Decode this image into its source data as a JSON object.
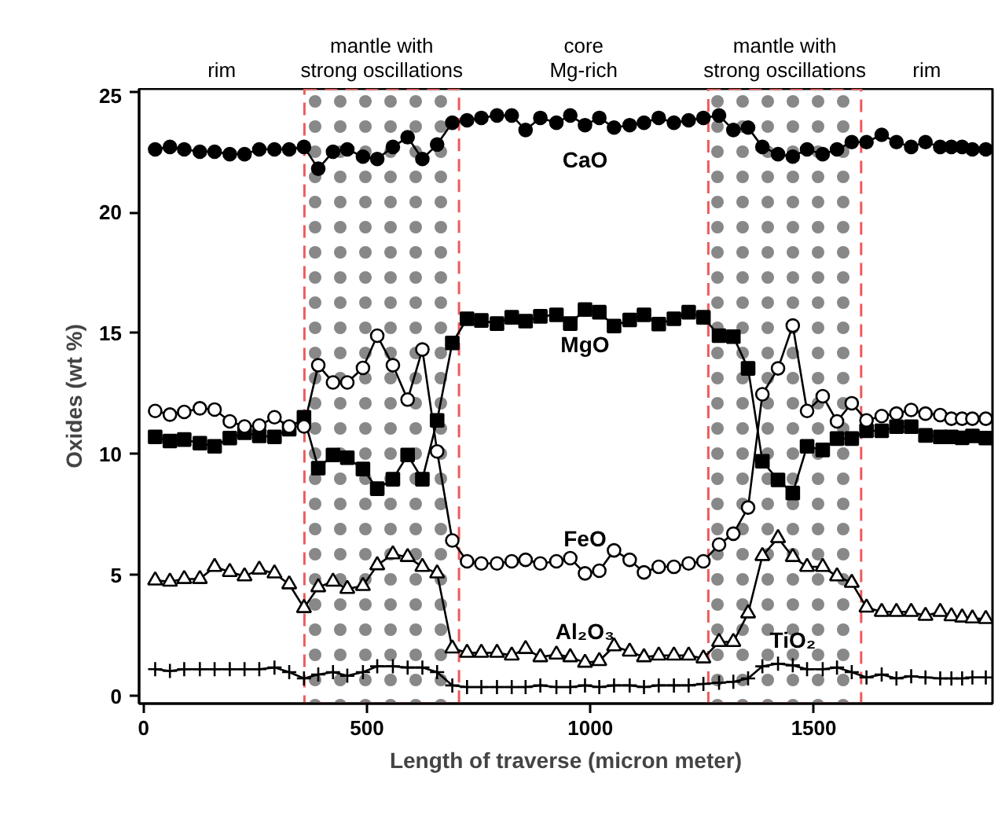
{
  "chart_data": {
    "type": "line",
    "xlabel": "Length of traverse (micron meter)",
    "ylabel": "Oxides (wt %)",
    "xlim": [
      -10,
      1900
    ],
    "ylim": [
      -0.3,
      25.1
    ],
    "xticks": [
      0,
      500,
      1000,
      1500
    ],
    "yticks": [
      0,
      5,
      10,
      15,
      20,
      25
    ],
    "grid": false,
    "line_style": "solid",
    "x": [
      26,
      59,
      91,
      126,
      159,
      193,
      226,
      259,
      293,
      326,
      359,
      391,
      424,
      456,
      491,
      523,
      558,
      591,
      624,
      657,
      691,
      724,
      756,
      791,
      824,
      855,
      888,
      924,
      955,
      988,
      1020,
      1053,
      1088,
      1120,
      1153,
      1187,
      1220,
      1253,
      1288,
      1320,
      1353,
      1385,
      1420,
      1453,
      1485,
      1520,
      1552,
      1585,
      1618,
      1652,
      1685,
      1718,
      1750,
      1783,
      1808,
      1832,
      1855,
      1885
    ],
    "series": [
      {
        "name": "CaO",
        "color": "#000000",
        "marker": "circle",
        "values": [
          22.6,
          22.7,
          22.6,
          22.5,
          22.5,
          22.4,
          22.4,
          22.6,
          22.6,
          22.6,
          22.7,
          21.8,
          22.5,
          22.6,
          22.3,
          22.2,
          22.7,
          23.1,
          22.2,
          22.8,
          23.7,
          23.8,
          23.9,
          24.0,
          24.0,
          23.4,
          23.9,
          23.7,
          24.0,
          23.6,
          23.9,
          23.5,
          23.6,
          23.7,
          23.9,
          23.7,
          23.8,
          23.9,
          24.0,
          23.4,
          23.5,
          22.7,
          22.4,
          22.3,
          22.6,
          22.4,
          22.6,
          22.9,
          22.9,
          23.2,
          22.9,
          22.7,
          22.9,
          22.7,
          22.7,
          22.7,
          22.6,
          22.6
        ]
      },
      {
        "name": "MgO",
        "color": "#000000",
        "marker": "square",
        "values": [
          10.72,
          10.55,
          10.61,
          10.46,
          10.33,
          10.67,
          10.89,
          10.76,
          10.72,
          11.04,
          11.53,
          9.43,
          9.97,
          9.86,
          9.39,
          8.58,
          8.97,
          9.97,
          8.97,
          11.4,
          14.6,
          15.6,
          15.53,
          15.4,
          15.66,
          15.5,
          15.7,
          15.76,
          15.4,
          15.98,
          15.87,
          15.3,
          15.55,
          15.76,
          15.38,
          15.6,
          15.87,
          15.66,
          14.9,
          14.86,
          13.55,
          9.71,
          8.94,
          8.4,
          10.33,
          10.18,
          10.65,
          10.65,
          10.97,
          10.97,
          11.14,
          11.14,
          10.78,
          10.72,
          10.72,
          10.68,
          10.76,
          10.67
        ]
      },
      {
        "name": "FeO",
        "color": "#000000",
        "marker": "circle",
        "values": [
          11.79,
          11.64,
          11.75,
          11.9,
          11.85,
          11.36,
          11.15,
          11.19,
          11.53,
          11.15,
          11.15,
          13.68,
          12.97,
          12.97,
          13.57,
          14.9,
          13.68,
          12.26,
          14.33,
          10.12,
          6.44,
          5.58,
          5.49,
          5.49,
          5.58,
          5.64,
          5.49,
          5.58,
          5.71,
          5.08,
          5.19,
          6.03,
          5.64,
          5.12,
          5.35,
          5.35,
          5.49,
          5.58,
          6.27,
          6.72,
          7.8,
          12.48,
          13.55,
          15.32,
          11.79,
          12.4,
          11.36,
          12.11,
          11.4,
          11.58,
          11.68,
          11.83,
          11.68,
          11.62,
          11.47,
          11.47,
          11.47,
          11.47
        ]
      },
      {
        "name": "Al₂O₃",
        "color": "#000000",
        "marker": "triangle",
        "values": [
          4.79,
          4.74,
          4.85,
          4.85,
          5.35,
          5.14,
          4.96,
          5.24,
          5.08,
          4.63,
          3.65,
          4.51,
          4.74,
          4.44,
          4.56,
          5.42,
          5.87,
          5.76,
          5.35,
          5.08,
          1.98,
          1.8,
          1.8,
          1.8,
          1.69,
          1.96,
          1.62,
          1.73,
          1.62,
          1.39,
          1.46,
          2.07,
          1.85,
          1.62,
          1.69,
          1.69,
          1.69,
          1.57,
          2.25,
          2.25,
          3.43,
          5.8,
          6.54,
          5.76,
          5.35,
          5.35,
          4.96,
          4.69,
          3.67,
          3.49,
          3.49,
          3.49,
          3.33,
          3.49,
          3.31,
          3.26,
          3.22,
          3.2
        ]
      },
      {
        "name": "TiO₂",
        "color": "#000000",
        "marker": "cross",
        "values": [
          1.12,
          1.05,
          1.12,
          1.12,
          1.12,
          1.12,
          1.12,
          1.12,
          1.19,
          1.0,
          0.74,
          0.9,
          1.0,
          0.85,
          1.0,
          1.24,
          1.24,
          1.19,
          1.19,
          1.0,
          0.45,
          0.38,
          0.38,
          0.38,
          0.38,
          0.38,
          0.45,
          0.38,
          0.38,
          0.45,
          0.38,
          0.45,
          0.45,
          0.38,
          0.45,
          0.45,
          0.45,
          0.51,
          0.56,
          0.6,
          0.74,
          1.24,
          1.35,
          1.28,
          1.12,
          1.12,
          1.19,
          1.0,
          0.78,
          0.9,
          0.74,
          0.83,
          0.78,
          0.74,
          0.74,
          0.74,
          0.78,
          0.78
        ]
      }
    ],
    "bands": [
      {
        "axis": "x",
        "from": 360,
        "to": 706,
        "label": "mantle with\nstrong oscillations",
        "color": "#ee5a5a"
      },
      {
        "axis": "x",
        "from": 1264,
        "to": 1606,
        "label": "mantle with\nstrong oscillations",
        "color": "#ee5a5a"
      }
    ],
    "annotations": [
      "rim",
      "core\nMg-rich",
      "rim"
    ]
  }
}
